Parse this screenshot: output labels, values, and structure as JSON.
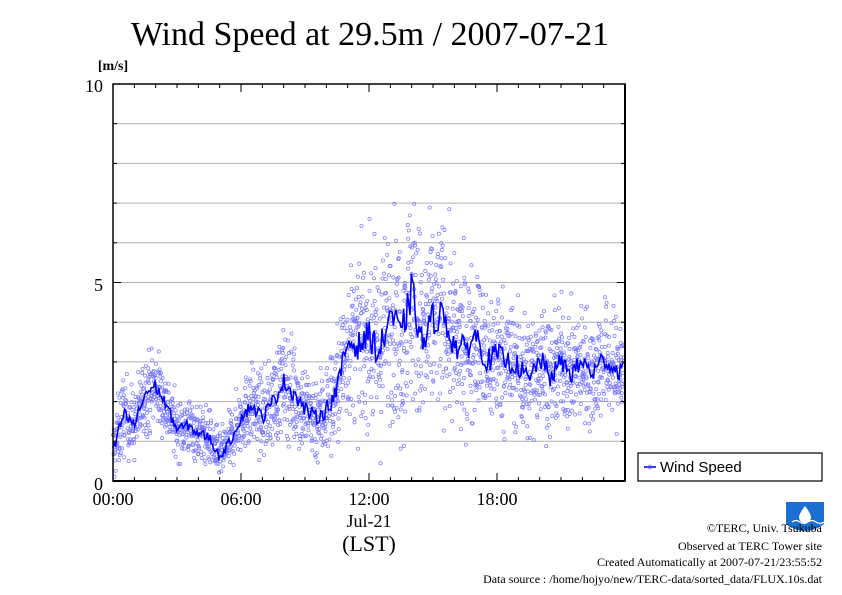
{
  "chart_data": {
    "type": "scatter",
    "title": "Wind Speed at 29.5m / 2007-07-21",
    "ylabel": "[m/s]",
    "ylim": [
      0,
      10
    ],
    "yticks": [
      0,
      5,
      10
    ],
    "xlim": [
      "00:00",
      "24:00"
    ],
    "xticks": [
      "00:00",
      "06:00",
      "12:00",
      "18:00"
    ],
    "date_label": "Jul-21",
    "xlabel": "(LST)",
    "grid": true,
    "legend_placement": "right-bottom",
    "series": [
      {
        "name": "Wind Speed",
        "mean_line_color": "#0000ff",
        "point_color": "#7777ff",
        "x_hours": [
          0.0,
          0.5,
          1.0,
          1.5,
          2.0,
          2.5,
          3.0,
          3.5,
          4.0,
          4.5,
          5.0,
          5.5,
          6.0,
          6.5,
          7.0,
          7.5,
          8.0,
          8.5,
          9.0,
          9.5,
          10.0,
          10.5,
          11.0,
          11.5,
          12.0,
          12.5,
          13.0,
          13.5,
          14.0,
          14.5,
          15.0,
          15.5,
          16.0,
          16.5,
          17.0,
          17.5,
          18.0,
          18.5,
          19.0,
          19.5,
          20.0,
          20.5,
          21.0,
          21.5,
          22.0,
          22.5,
          23.0,
          23.5
        ],
        "mean_values": [
          0.7,
          1.7,
          1.4,
          2.2,
          2.4,
          1.9,
          1.3,
          1.4,
          1.2,
          1.1,
          0.6,
          1.0,
          1.6,
          1.9,
          1.6,
          2.0,
          2.5,
          2.2,
          1.8,
          1.6,
          1.8,
          2.3,
          3.5,
          3.4,
          3.7,
          3.2,
          4.3,
          3.6,
          4.8,
          3.4,
          4.1,
          4.2,
          3.4,
          3.3,
          3.7,
          3.0,
          3.2,
          3.0,
          2.9,
          2.5,
          3.1,
          2.6,
          3.0,
          2.7,
          3.0,
          2.7,
          3.1,
          2.8
        ],
        "spread_values": [
          0.6,
          0.7,
          0.6,
          0.7,
          0.7,
          0.6,
          0.5,
          0.5,
          0.5,
          0.5,
          0.4,
          0.5,
          0.6,
          0.7,
          0.7,
          0.8,
          0.9,
          0.9,
          0.8,
          0.8,
          0.9,
          1.0,
          1.3,
          1.4,
          1.5,
          1.6,
          1.7,
          1.8,
          1.9,
          1.8,
          1.7,
          1.6,
          1.5,
          1.4,
          1.3,
          1.2,
          1.2,
          1.1,
          1.1,
          1.1,
          1.1,
          1.0,
          1.0,
          1.0,
          1.0,
          1.0,
          1.0,
          1.0
        ]
      }
    ]
  },
  "footer": {
    "copyright": "©TERC, Univ. Tsukuba",
    "observed": "Observed at TERC Tower site",
    "created": "Created Automatically at 2007-07-21/23:55:52",
    "source": "Data source : /home/hojyo/new/TERC-data/sorted_data/FLUX.10s.dat"
  },
  "logo": {
    "text": "TERC",
    "color": "#1a6fd0"
  }
}
